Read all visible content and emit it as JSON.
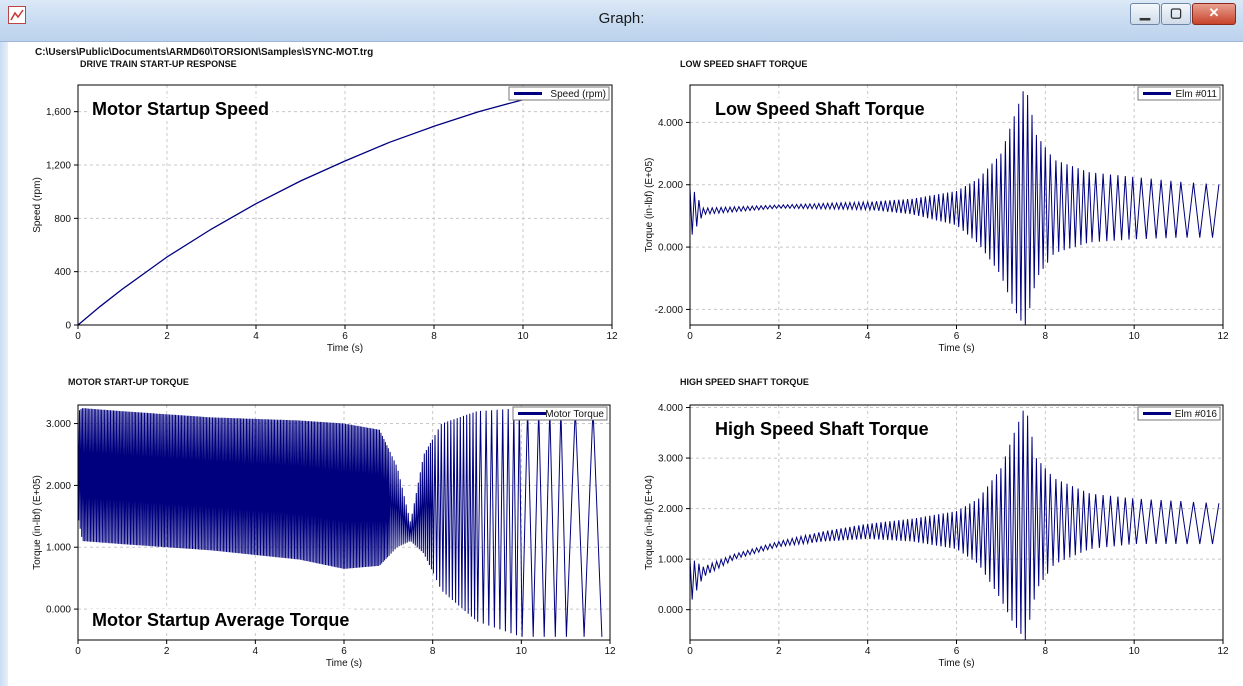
{
  "window": {
    "title": "Graph:",
    "file_path": "C:\\Users\\Public\\Documents\\ARMD60\\TORSION\\Samples\\SYNC-MOT.trg",
    "buttons": {
      "minimize": "▁",
      "maximize": "▢",
      "close": "✕"
    },
    "icons": {
      "app": "graph-app-icon"
    }
  },
  "colors": {
    "series": "#00007f",
    "grid": "#c8c8c8",
    "titlebar": "#c9dcf1",
    "close": "#c7432a"
  },
  "chart_data": [
    {
      "id": "speed",
      "type": "line",
      "title": "DRIVE TRAIN START-UP RESPONSE",
      "overlay_label": "Motor Startup Speed",
      "xlabel": "Time (s)",
      "ylabel": "Speed (rpm)",
      "xlim": [
        0,
        12
      ],
      "ylim": [
        0,
        1800
      ],
      "xticks": [
        "0",
        "2",
        "4",
        "6",
        "8",
        "10",
        "12"
      ],
      "yticks": [
        {
          "v": 0,
          "t": "0"
        },
        {
          "v": 400,
          "t": "400"
        },
        {
          "v": 800,
          "t": "800"
        },
        {
          "v": 1200,
          "t": "1,200"
        },
        {
          "v": 1600,
          "t": "1,600"
        }
      ],
      "legend": "Speed (rpm)",
      "legend_position": "top-right",
      "grid": true,
      "series": [
        {
          "name": "Speed (rpm)",
          "x": [
            0,
            0.5,
            1,
            1.5,
            2,
            3,
            4,
            5,
            6,
            7,
            8,
            9,
            10
          ],
          "y": [
            0,
            140,
            270,
            390,
            510,
            720,
            910,
            1080,
            1230,
            1370,
            1490,
            1600,
            1690
          ]
        }
      ]
    },
    {
      "id": "low_speed",
      "type": "line",
      "title": "LOW SPEED SHAFT TORQUE",
      "overlay_label": "Low Speed Shaft Torque",
      "xlabel": "Time (s)",
      "ylabel": "Torque (in-lbf) (E+05)",
      "xlim": [
        0,
        12
      ],
      "ylim": [
        -2.5,
        5.2
      ],
      "xticks": [
        "0",
        "2",
        "4",
        "6",
        "8",
        "10",
        "12"
      ],
      "yticks": [
        {
          "v": -2,
          "t": "-2.000"
        },
        {
          "v": 0,
          "t": "0.000"
        },
        {
          "v": 2,
          "t": "2.000"
        },
        {
          "v": 4,
          "t": "4.000"
        }
      ],
      "legend": "Elm #011",
      "legend_position": "top-right",
      "grid": true,
      "series": [
        {
          "name": "Elm #011",
          "envelope": {
            "t": [
              0,
              0.05,
              0.3,
              2,
              4,
              5,
              6,
              6.5,
              7,
              7.3,
              7.55,
              7.8,
              8.2,
              9,
              10,
              11,
              12
            ],
            "upper": [
              1.9,
              1.9,
              1.25,
              1.35,
              1.45,
              1.55,
              1.8,
              2.2,
              3.0,
              4.2,
              5.2,
              3.6,
              2.8,
              2.4,
              2.25,
              2.1,
              2.0
            ],
            "lower": [
              1.9,
              0.4,
              1.05,
              1.25,
              1.2,
              1.05,
              0.7,
              0.1,
              -0.9,
              -2.0,
              -2.6,
              -1.0,
              -0.2,
              0.15,
              0.25,
              0.3,
              0.3
            ]
          },
          "cycles_per_second": [
            10,
            10,
            10,
            10,
            10,
            10,
            10,
            10,
            8,
            6,
            4.5,
            3.5,
            2.5
          ],
          "cycle_time_breaks": [
            0,
            6,
            8,
            9,
            10,
            11,
            12
          ]
        }
      ]
    },
    {
      "id": "motor_torque",
      "type": "line",
      "title": "MOTOR START-UP TORQUE",
      "overlay_label": "Motor Startup Average Torque",
      "xlabel": "Time (s)",
      "ylabel": "Torque (in-lbf) (E+05)",
      "xlim": [
        0,
        12
      ],
      "ylim": [
        -0.5,
        3.3
      ],
      "xticks": [
        "0",
        "2",
        "4",
        "6",
        "8",
        "10",
        "12"
      ],
      "yticks": [
        {
          "v": 0,
          "t": "0.000"
        },
        {
          "v": 1,
          "t": "1.000"
        },
        {
          "v": 2,
          "t": "2.000"
        },
        {
          "v": 3,
          "t": "3.000"
        }
      ],
      "legend": "Motor Torque",
      "legend_position": "top-right",
      "grid": true,
      "series": [
        {
          "name": "Motor Torque",
          "envelope": {
            "t": [
              0,
              0.1,
              1,
              3,
              5,
              6,
              6.8,
              7.2,
              7.5,
              7.8,
              8.2,
              9,
              10,
              11,
              12
            ],
            "upper": [
              3.2,
              3.25,
              3.2,
              3.1,
              3.05,
              3.0,
              2.9,
              2.3,
              1.4,
              2.5,
              3.0,
              3.2,
              3.25,
              3.25,
              3.25
            ],
            "lower": [
              1.5,
              1.1,
              1.05,
              0.95,
              0.8,
              0.65,
              0.7,
              1.0,
              1.1,
              0.9,
              0.3,
              -0.2,
              -0.45,
              -0.45,
              -0.45
            ]
          },
          "cycles_per_second": [
            30,
            22,
            14,
            8,
            4,
            2.5
          ],
          "cycle_time_breaks": [
            0,
            7,
            8,
            9,
            10,
            11,
            12
          ]
        }
      ]
    },
    {
      "id": "high_speed",
      "type": "line",
      "title": "HIGH SPEED SHAFT TORQUE",
      "overlay_label": "High Speed Shaft Torque",
      "xlabel": "Time (s)",
      "ylabel": "Torque (in-lbf) (E+04)",
      "xlim": [
        0,
        12
      ],
      "ylim": [
        -0.6,
        4.05
      ],
      "xticks": [
        "0",
        "2",
        "4",
        "6",
        "8",
        "10",
        "12"
      ],
      "yticks": [
        {
          "v": 0,
          "t": "0.000"
        },
        {
          "v": 1,
          "t": "1.000"
        },
        {
          "v": 2,
          "t": "2.000"
        },
        {
          "v": 3,
          "t": "3.000"
        },
        {
          "v": 4,
          "t": "4.000"
        }
      ],
      "legend": "Elm #016",
      "legend_position": "top-right",
      "grid": true,
      "series": [
        {
          "name": "Elm #016",
          "envelope": {
            "t": [
              0,
              0.05,
              0.3,
              1,
              2,
              3,
              4,
              5,
              6,
              6.5,
              7,
              7.3,
              7.55,
              7.8,
              8.2,
              9,
              10,
              11,
              12
            ],
            "upper": [
              1.0,
              1.0,
              0.85,
              1.1,
              1.35,
              1.55,
              1.7,
              1.8,
              1.95,
              2.2,
              2.8,
              3.5,
              4.05,
              3.0,
              2.6,
              2.3,
              2.2,
              2.15,
              2.1
            ],
            "lower": [
              1.0,
              0.2,
              0.65,
              1.0,
              1.25,
              1.35,
              1.4,
              1.35,
              1.2,
              0.9,
              0.2,
              -0.3,
              -0.6,
              0.4,
              0.9,
              1.2,
              1.3,
              1.3,
              1.3
            ]
          },
          "cycles_per_second": [
            10,
            10,
            10,
            10,
            10,
            10,
            10,
            10,
            8,
            6,
            4.5,
            3.5,
            2.5
          ],
          "cycle_time_breaks": [
            0,
            6,
            8,
            9,
            10,
            11,
            12
          ]
        }
      ]
    }
  ]
}
